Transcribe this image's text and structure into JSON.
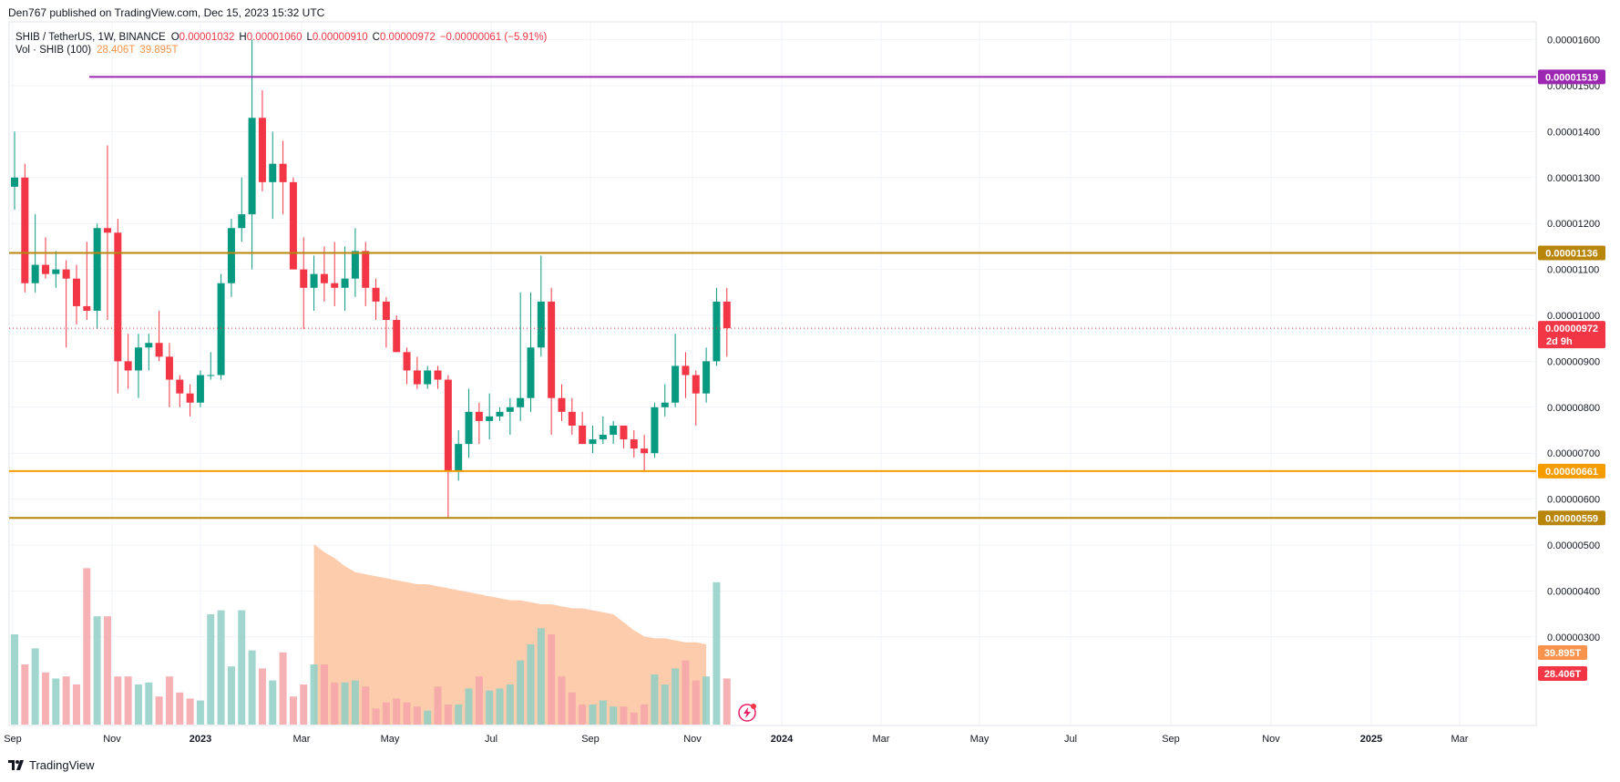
{
  "header": {
    "published": "Den767 published on TradingView.com, Dec 15, 2023 15:32 UTC"
  },
  "legend": {
    "symbol": "SHIB / TetherUS, 1W, BINANCE",
    "open_label": "O",
    "open": "0.00001032",
    "high_label": "H",
    "high": "0.00001060",
    "low_label": "L",
    "low": "0.00000910",
    "close_label": "C",
    "close": "0.00000972",
    "change": "−0.00000061 (−5.91%)",
    "vol_label": "Vol · SHIB (100)",
    "vol_value": "28.406T",
    "vol_ma": "39.895T"
  },
  "footer": {
    "brand": "TradingView"
  },
  "colors": {
    "up": "#089981",
    "down": "#f23645",
    "vol_up": "#8fcfc6",
    "vol_down": "#f5a3a8",
    "vol_ma_fill": "#fcc7a4",
    "line_purple": "#9c27b0",
    "line_gold": "#b8860b",
    "line_orange": "#f59d00"
  },
  "chart_data": {
    "type": "candlestick",
    "symbol": "SHIB / TetherUS",
    "interval": "1W",
    "exchange": "BINANCE",
    "y_scale_ticks": [
      "0.00001600",
      "0.00001500",
      "0.00001400",
      "0.00001300",
      "0.00001200",
      "0.00001100",
      "0.00001000",
      "0.00000900",
      "0.00000800",
      "0.00000700",
      "0.00000600",
      "0.00000500",
      "0.00000400",
      "0.00000300"
    ],
    "x_labels": [
      "Sep",
      "Nov",
      "2023",
      "Mar",
      "May",
      "Jul",
      "Sep",
      "Nov",
      "2024",
      "Mar",
      "May",
      "Jul",
      "Sep",
      "Nov",
      "2025",
      "Mar"
    ],
    "ylim": [
      3e-06,
      1.6e-05
    ],
    "candles_ohlc": [
      [
        1.28e-05,
        1.4e-05,
        1.23e-05,
        1.3e-05
      ],
      [
        1.3e-05,
        1.33e-05,
        1.05e-05,
        1.07e-05
      ],
      [
        1.07e-05,
        1.22e-05,
        1.05e-05,
        1.11e-05
      ],
      [
        1.11e-05,
        1.17e-05,
        1.08e-05,
        1.09e-05
      ],
      [
        1.09e-05,
        1.14e-05,
        1.06e-05,
        1.1e-05
      ],
      [
        1.1e-05,
        1.12e-05,
        9.3e-06,
        1.08e-05
      ],
      [
        1.08e-05,
        1.11e-05,
        9.8e-06,
        1.02e-05
      ],
      [
        1.02e-05,
        1.16e-05,
        9.9e-06,
        1.01e-05
      ],
      [
        1.01e-05,
        1.2e-05,
        9.7e-06,
        1.19e-05
      ],
      [
        1.19e-05,
        1.37e-05,
        9.9e-06,
        1.18e-05
      ],
      [
        1.18e-05,
        1.21e-05,
        8.3e-06,
        9e-06
      ],
      [
        9e-06,
        9.6e-06,
        8.4e-06,
        8.8e-06
      ],
      [
        8.8e-06,
        9.6e-06,
        8.2e-06,
        9.3e-06
      ],
      [
        9.3e-06,
        9.6e-06,
        8.8e-06,
        9.4e-06
      ],
      [
        9.4e-06,
        1.01e-05,
        9e-06,
        9.1e-06
      ],
      [
        9.1e-06,
        9.4e-06,
        8e-06,
        8.6e-06
      ],
      [
        8.6e-06,
        8.7e-06,
        8e-06,
        8.3e-06
      ],
      [
        8.3e-06,
        8.5e-06,
        7.8e-06,
        8.1e-06
      ],
      [
        8.1e-06,
        8.8e-06,
        8e-06,
        8.7e-06
      ],
      [
        8.7e-06,
        9.2e-06,
        8.6e-06,
        8.7e-06
      ],
      [
        8.7e-06,
        1.09e-05,
        8.6e-06,
        1.07e-05
      ],
      [
        1.07e-05,
        1.21e-05,
        1.04e-05,
        1.19e-05
      ],
      [
        1.19e-05,
        1.3e-05,
        1.16e-05,
        1.22e-05
      ],
      [
        1.22e-05,
        1.6e-05,
        1.1e-05,
        1.43e-05
      ],
      [
        1.43e-05,
        1.49e-05,
        1.27e-05,
        1.29e-05
      ],
      [
        1.29e-05,
        1.4e-05,
        1.21e-05,
        1.33e-05
      ],
      [
        1.33e-05,
        1.38e-05,
        1.22e-05,
        1.29e-05
      ],
      [
        1.29e-05,
        1.3e-05,
        1.1e-05,
        1.1e-05
      ],
      [
        1.1e-05,
        1.17e-05,
        9.7e-06,
        1.06e-05
      ],
      [
        1.06e-05,
        1.13e-05,
        1.01e-05,
        1.09e-05
      ],
      [
        1.09e-05,
        1.15e-05,
        1.03e-05,
        1.07e-05
      ],
      [
        1.07e-05,
        1.16e-05,
        1.02e-05,
        1.06e-05
      ],
      [
        1.06e-05,
        1.15e-05,
        1.01e-05,
        1.08e-05
      ],
      [
        1.08e-05,
        1.19e-05,
        1.04e-05,
        1.14e-05
      ],
      [
        1.14e-05,
        1.16e-05,
        1.02e-05,
        1.06e-05
      ],
      [
        1.06e-05,
        1.08e-05,
        9.9e-06,
        1.03e-05
      ],
      [
        1.03e-05,
        1.04e-05,
        9.3e-06,
        9.9e-06
      ],
      [
        9.9e-06,
        1e-05,
        9.2e-06,
        9.2e-06
      ],
      [
        9.2e-06,
        9.3e-06,
        8.5e-06,
        8.8e-06
      ],
      [
        8.8e-06,
        9.1e-06,
        8.4e-06,
        8.5e-06
      ],
      [
        8.5e-06,
        8.9e-06,
        8.4e-06,
        8.8e-06
      ],
      [
        8.8e-06,
        8.9e-06,
        8.4e-06,
        8.6e-06
      ],
      [
        8.6e-06,
        8.7e-06,
        5.6e-06,
        6.6e-06
      ],
      [
        6.6e-06,
        7.5e-06,
        6.4e-06,
        7.2e-06
      ],
      [
        7.2e-06,
        8.4e-06,
        6.9e-06,
        7.9e-06
      ],
      [
        7.9e-06,
        8.1e-06,
        7.2e-06,
        7.7e-06
      ],
      [
        7.7e-06,
        8.3e-06,
        7.3e-06,
        7.8e-06
      ],
      [
        7.8e-06,
        8e-06,
        7.7e-06,
        7.9e-06
      ],
      [
        7.9e-06,
        8.2e-06,
        7.4e-06,
        8e-06
      ],
      [
        8e-06,
        1.05e-05,
        7.7e-06,
        8.2e-06
      ],
      [
        8.2e-06,
        1.05e-05,
        7.9e-06,
        9.3e-06
      ],
      [
        9.3e-06,
        1.13e-05,
        9.1e-06,
        1.03e-05
      ],
      [
        1.03e-05,
        1.06e-05,
        7.4e-06,
        8.2e-06
      ],
      [
        8.2e-06,
        8.5e-06,
        7.7e-06,
        7.9e-06
      ],
      [
        7.9e-06,
        8.2e-06,
        7.4e-06,
        7.6e-06
      ],
      [
        7.6e-06,
        7.9e-06,
        7.2e-06,
        7.2e-06
      ],
      [
        7.2e-06,
        7.6e-06,
        7e-06,
        7.3e-06
      ],
      [
        7.3e-06,
        7.8e-06,
        7.2e-06,
        7.4e-06
      ],
      [
        7.4e-06,
        7.7e-06,
        7.2e-06,
        7.6e-06
      ],
      [
        7.6e-06,
        7.6e-06,
        7.1e-06,
        7.3e-06
      ],
      [
        7.3e-06,
        7.5e-06,
        6.9e-06,
        7.1e-06
      ],
      [
        7.1e-06,
        7.4e-06,
        6.6e-06,
        7e-06
      ],
      [
        7e-06,
        8.1e-06,
        6.9e-06,
        8e-06
      ],
      [
        8e-06,
        8.5e-06,
        7.8e-06,
        8.1e-06
      ],
      [
        8.1e-06,
        9.6e-06,
        8e-06,
        8.9e-06
      ],
      [
        8.9e-06,
        9.2e-06,
        8.2e-06,
        8.7e-06
      ],
      [
        8.7e-06,
        8.8e-06,
        7.6e-06,
        8.3e-06
      ],
      [
        8.3e-06,
        9.3e-06,
        8.1e-06,
        9e-06
      ],
      [
        9e-06,
        1.06e-05,
        8.9e-06,
        1.03e-05
      ],
      [
        1.03e-05,
        1.06e-05,
        9.1e-06,
        9.72e-06
      ]
    ],
    "volume_relative": [
      0.45,
      0.3,
      0.38,
      0.26,
      0.23,
      0.24,
      0.2,
      0.78,
      0.54,
      0.54,
      0.24,
      0.24,
      0.2,
      0.21,
      0.14,
      0.24,
      0.16,
      0.13,
      0.12,
      0.55,
      0.57,
      0.29,
      0.57,
      0.37,
      0.28,
      0.22,
      0.36,
      0.14,
      0.2,
      0.3,
      0.3,
      0.21,
      0.21,
      0.22,
      0.19,
      0.08,
      0.11,
      0.13,
      0.11,
      0.09,
      0.07,
      0.19,
      0.1,
      0.1,
      0.18,
      0.24,
      0.17,
      0.18,
      0.2,
      0.32,
      0.4,
      0.48,
      0.45,
      0.24,
      0.16,
      0.1,
      0.1,
      0.12,
      0.09,
      0.09,
      0.06,
      0.1,
      0.25,
      0.2,
      0.28,
      0.32,
      0.22,
      0.24,
      0.71,
      0.23
    ],
    "volume_ma_relative": [
      0.9,
      0.86,
      0.83,
      0.79,
      0.76,
      0.75,
      0.74,
      0.73,
      0.72,
      0.71,
      0.7,
      0.7,
      0.69,
      0.68,
      0.67,
      0.66,
      0.65,
      0.64,
      0.63,
      0.62,
      0.62,
      0.61,
      0.6,
      0.6,
      0.59,
      0.58,
      0.58,
      0.57,
      0.56,
      0.55,
      0.51,
      0.47,
      0.44,
      0.43,
      0.43,
      0.42,
      0.41,
      0.41,
      0.4
    ],
    "horizontal_levels": [
      {
        "price": "0.00001519",
        "color": "#9c27b0"
      },
      {
        "price": "0.00001136",
        "color": "#b8860b"
      },
      {
        "price": "0.00000661",
        "color": "#f59d00"
      },
      {
        "price": "0.00000559",
        "color": "#b8860b"
      }
    ],
    "last_price": "0.00000972",
    "countdown": "2d 9h",
    "volume_badges": [
      {
        "value": "39.895T",
        "color": "#f7934c"
      },
      {
        "value": "28.406T",
        "color": "#f23645"
      }
    ]
  }
}
